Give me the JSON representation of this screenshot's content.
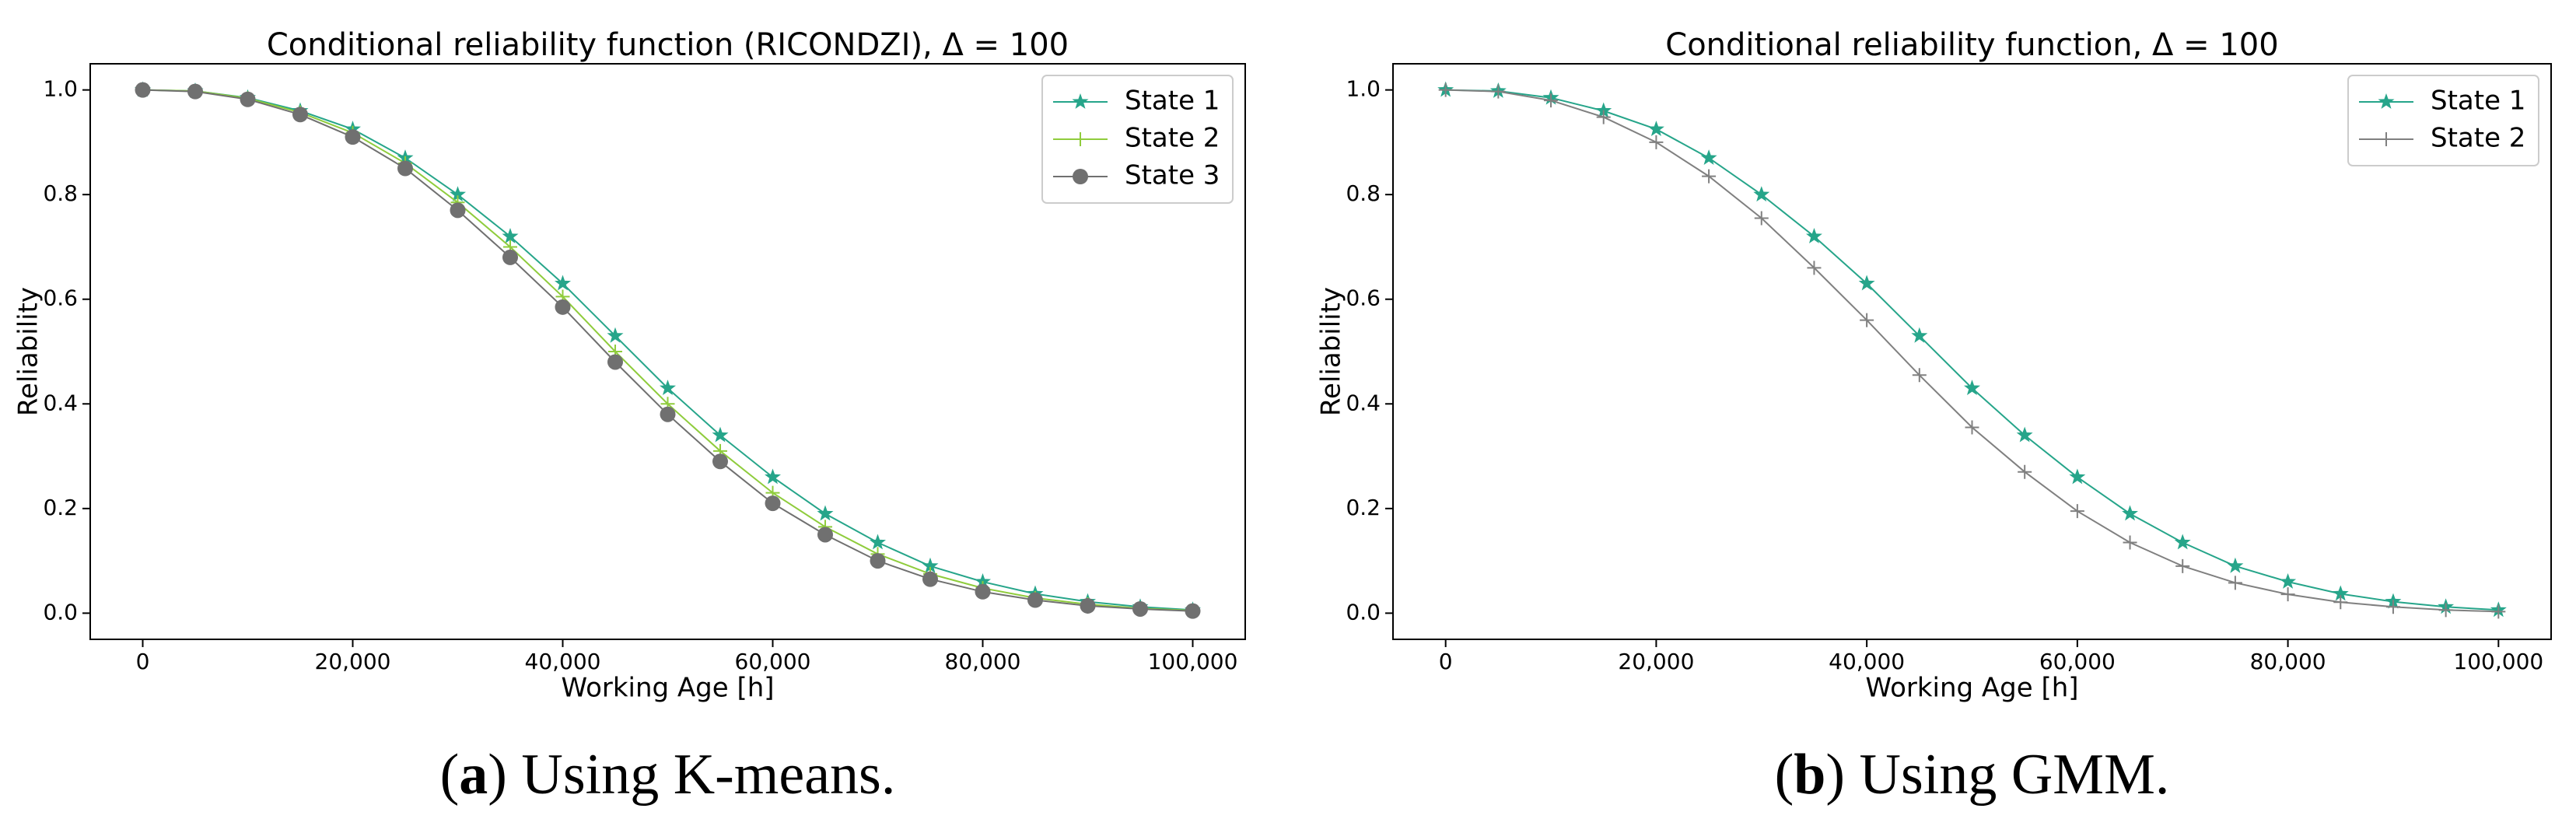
{
  "chart_data": [
    {
      "type": "line",
      "title": "Conditional reliability function (RICONDZI), Δ = 100",
      "x_label": "Working Age [h]",
      "y_label": "Reliability",
      "x": [
        0,
        5000,
        10000,
        15000,
        20000,
        25000,
        30000,
        35000,
        40000,
        45000,
        50000,
        55000,
        60000,
        65000,
        70000,
        75000,
        80000,
        85000,
        90000,
        95000,
        100000
      ],
      "series": [
        {
          "name": "State 1",
          "color": "#26a58a",
          "marker": "star",
          "values": [
            1.0,
            0.998,
            0.985,
            0.96,
            0.925,
            0.87,
            0.8,
            0.72,
            0.63,
            0.53,
            0.43,
            0.34,
            0.26,
            0.19,
            0.135,
            0.09,
            0.06,
            0.037,
            0.022,
            0.012,
            0.006
          ]
        },
        {
          "name": "State 2",
          "color": "#8fcc3c",
          "marker": "plus",
          "values": [
            1.0,
            0.998,
            0.984,
            0.957,
            0.918,
            0.86,
            0.785,
            0.7,
            0.605,
            0.5,
            0.4,
            0.31,
            0.23,
            0.165,
            0.113,
            0.075,
            0.048,
            0.029,
            0.017,
            0.009,
            0.005
          ]
        },
        {
          "name": "State 3",
          "color": "#707070",
          "marker": "circle",
          "values": [
            1.0,
            0.997,
            0.982,
            0.953,
            0.91,
            0.85,
            0.77,
            0.68,
            0.585,
            0.48,
            0.38,
            0.29,
            0.21,
            0.15,
            0.1,
            0.065,
            0.041,
            0.025,
            0.014,
            0.008,
            0.004
          ]
        }
      ],
      "xlim": [
        -5000,
        105000
      ],
      "ylim": [
        -0.05,
        1.05
      ],
      "xticks": [
        0,
        {
          "value": 20000,
          "label": "20,000"
        },
        {
          "value": 40000,
          "label": "40,000"
        },
        {
          "value": 60000,
          "label": "60,000"
        },
        {
          "value": 80000,
          "label": "80,000"
        },
        {
          "value": 100000,
          "label": "100,000"
        }
      ],
      "yticks": [
        {
          "value": 0,
          "label": "0.0"
        },
        0.2,
        0.4,
        0.6,
        0.8,
        {
          "value": 1,
          "label": "1.0"
        }
      ],
      "legend": "upper right",
      "caption": [
        "(",
        "a",
        ") Using K-means."
      ]
    },
    {
      "type": "line",
      "title": "Conditional reliability function, Δ = 100",
      "x_label": "Working Age [h]",
      "y_label": "Reliability",
      "x": [
        0,
        5000,
        10000,
        15000,
        20000,
        25000,
        30000,
        35000,
        40000,
        45000,
        50000,
        55000,
        60000,
        65000,
        70000,
        75000,
        80000,
        85000,
        90000,
        95000,
        100000
      ],
      "series": [
        {
          "name": "State 1",
          "color": "#26a58a",
          "marker": "star",
          "values": [
            1.0,
            0.998,
            0.985,
            0.96,
            0.925,
            0.87,
            0.8,
            0.72,
            0.63,
            0.53,
            0.43,
            0.34,
            0.26,
            0.19,
            0.135,
            0.09,
            0.06,
            0.037,
            0.022,
            0.012,
            0.006
          ]
        },
        {
          "name": "State 2",
          "color": "#808080",
          "marker": "plus",
          "values": [
            1.0,
            0.997,
            0.98,
            0.948,
            0.9,
            0.835,
            0.755,
            0.66,
            0.56,
            0.455,
            0.355,
            0.27,
            0.195,
            0.135,
            0.09,
            0.058,
            0.036,
            0.021,
            0.012,
            0.006,
            0.003
          ]
        }
      ],
      "xlim": [
        -5000,
        105000
      ],
      "ylim": [
        -0.05,
        1.05
      ],
      "xticks": [
        0,
        {
          "value": 20000,
          "label": "20,000"
        },
        {
          "value": 40000,
          "label": "40,000"
        },
        {
          "value": 60000,
          "label": "60,000"
        },
        {
          "value": 80000,
          "label": "80,000"
        },
        {
          "value": 100000,
          "label": "100,000"
        }
      ],
      "yticks": [
        {
          "value": 0,
          "label": "0.0"
        },
        0.2,
        0.4,
        0.6,
        0.8,
        {
          "value": 1,
          "label": "1.0"
        }
      ],
      "legend": "upper right",
      "caption": [
        "(",
        "b",
        ") Using GMM."
      ]
    }
  ]
}
